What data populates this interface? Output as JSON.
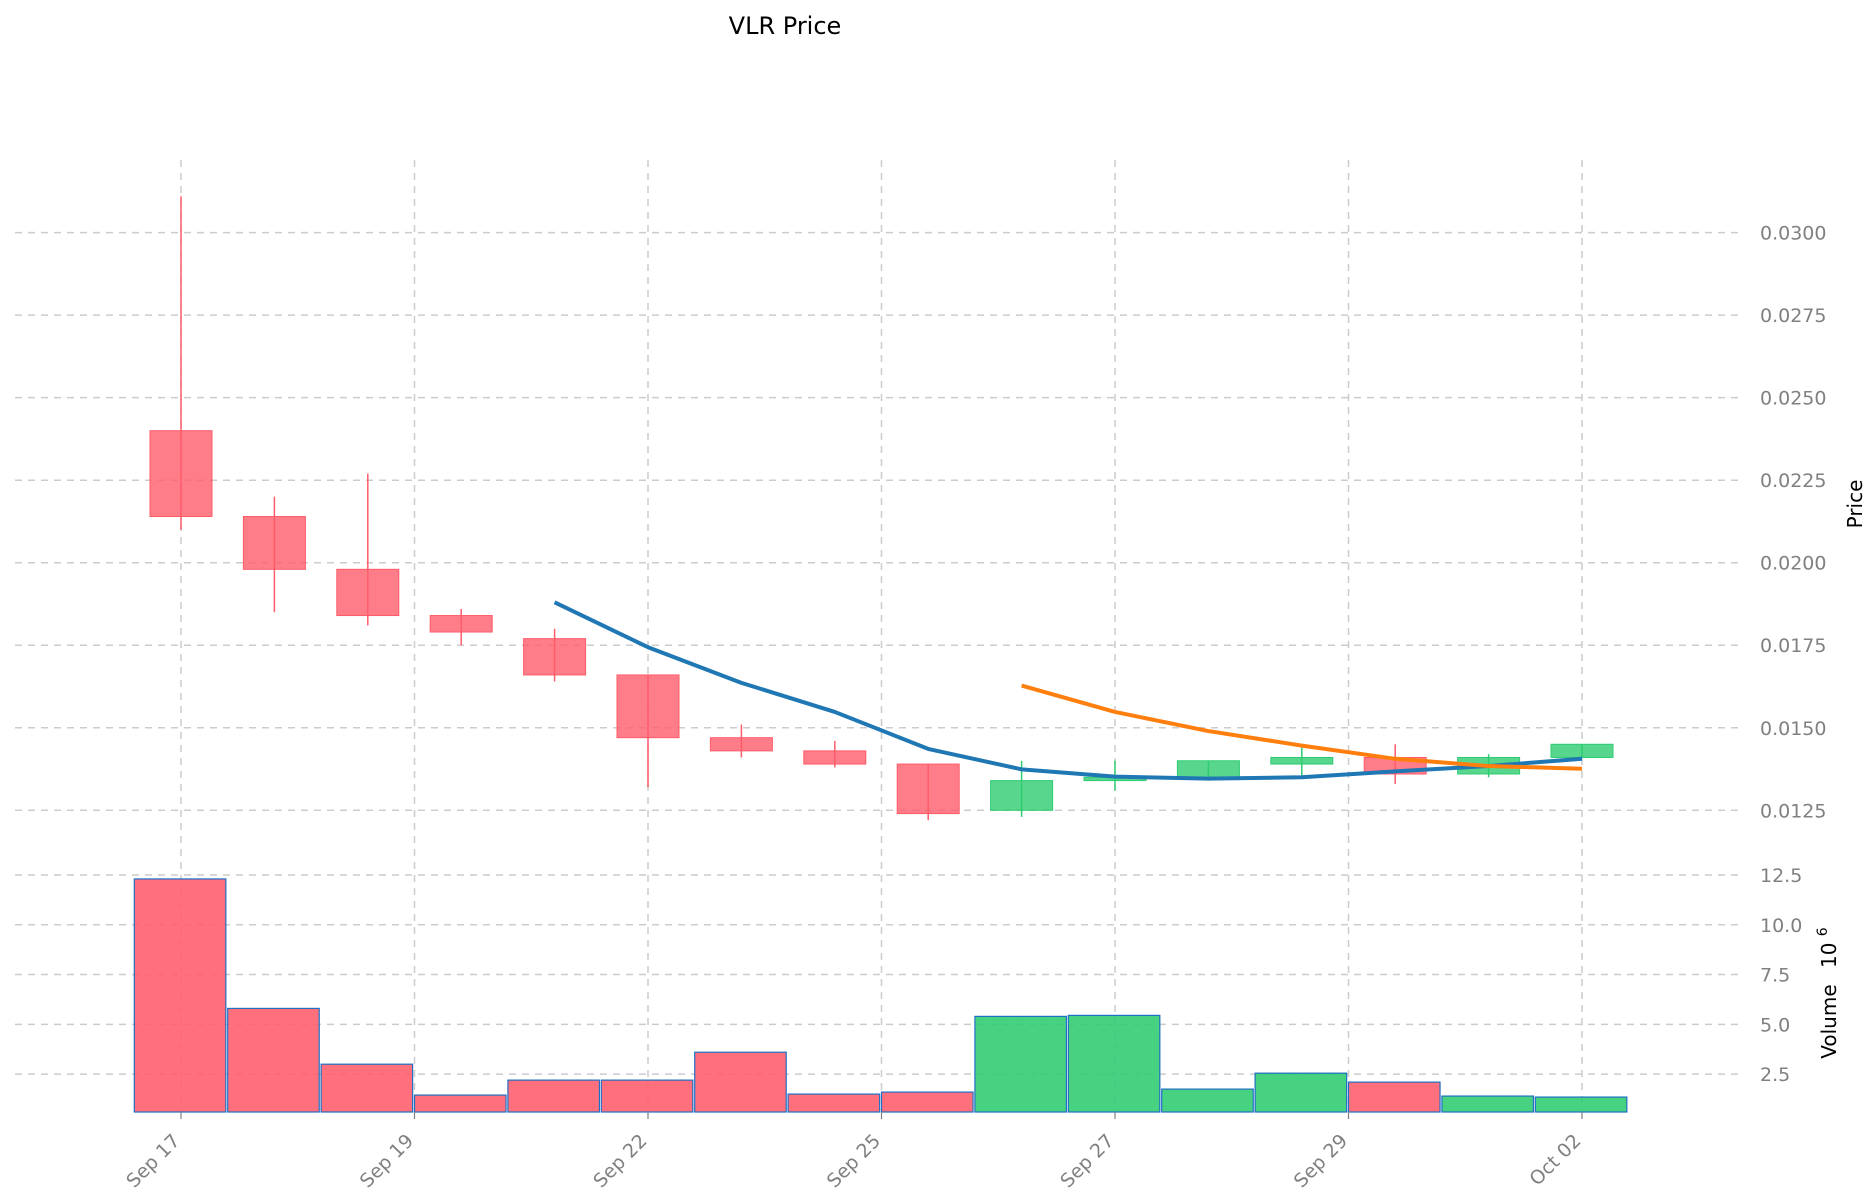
{
  "chart_data": {
    "title": "VLR Price",
    "price_panel": {
      "type": "candlestick",
      "ylabel": "Price",
      "ylim": [
        0.0116,
        0.0322
      ],
      "yticks": [
        0.0125,
        0.015,
        0.0175,
        0.02,
        0.0225,
        0.025,
        0.0275,
        0.03
      ],
      "ytick_labels": [
        "0.0125",
        "0.0150",
        "0.0175",
        "0.0200",
        "0.0225",
        "0.0250",
        "0.0275",
        "0.0300"
      ],
      "candles": [
        {
          "date": "Sep 17",
          "open": 0.024,
          "high": 0.0311,
          "low": 0.021,
          "close": 0.0214
        },
        {
          "date": "Sep 18",
          "open": 0.0214,
          "high": 0.022,
          "low": 0.0185,
          "close": 0.0198
        },
        {
          "date": "Sep 19",
          "open": 0.0198,
          "high": 0.0227,
          "low": 0.0181,
          "close": 0.0184
        },
        {
          "date": "Sep 20",
          "open": 0.0184,
          "high": 0.0186,
          "low": 0.0175,
          "close": 0.0179
        },
        {
          "date": "Sep 21",
          "open": 0.0177,
          "high": 0.018,
          "low": 0.0164,
          "close": 0.0166
        },
        {
          "date": "Sep 22",
          "open": 0.0166,
          "high": 0.0166,
          "low": 0.0132,
          "close": 0.0147
        },
        {
          "date": "Sep 23",
          "open": 0.0147,
          "high": 0.0151,
          "low": 0.0141,
          "close": 0.0143
        },
        {
          "date": "Sep 24",
          "open": 0.0143,
          "high": 0.0146,
          "low": 0.0138,
          "close": 0.0139
        },
        {
          "date": "Sep 25",
          "open": 0.0139,
          "high": 0.0139,
          "low": 0.0122,
          "close": 0.0124
        },
        {
          "date": "Sep 26",
          "open": 0.0125,
          "high": 0.014,
          "low": 0.0123,
          "close": 0.0134
        },
        {
          "date": "Sep 27",
          "open": 0.0134,
          "high": 0.014,
          "low": 0.0131,
          "close": 0.0135
        },
        {
          "date": "Sep 28",
          "open": 0.0135,
          "high": 0.014,
          "low": 0.0134,
          "close": 0.014
        },
        {
          "date": "Sep 29",
          "open": 0.0139,
          "high": 0.0145,
          "low": 0.0135,
          "close": 0.0141
        },
        {
          "date": "Sep 30",
          "open": 0.0141,
          "high": 0.0145,
          "low": 0.0133,
          "close": 0.0136
        },
        {
          "date": "Oct 01",
          "open": 0.0136,
          "high": 0.0142,
          "low": 0.0135,
          "close": 0.0141
        },
        {
          "date": "Oct 02",
          "open": 0.0141,
          "high": 0.0145,
          "low": 0.0141,
          "close": 0.0145
        }
      ],
      "moving_averages": [
        {
          "color": "#1f77b4",
          "start_index": 4,
          "values": [
            0.0188,
            0.01744,
            0.01636,
            0.01548,
            0.01436,
            0.01374,
            0.01352,
            0.01346,
            0.0135,
            0.01368,
            0.01384,
            0.01406
          ]
        },
        {
          "color": "#ff7f0e",
          "start_index": 9,
          "values": [
            0.01628,
            0.01548,
            0.0149,
            0.01446,
            0.01406,
            0.01384,
            0.01376
          ]
        }
      ]
    },
    "volume_panel": {
      "type": "bar",
      "ylabel": "Volume",
      "yscale_label": "10",
      "yscale_exponent": "6",
      "ylim": [
        0.6,
        13.0
      ],
      "yticks": [
        2.5,
        5.0,
        7.5,
        10.0,
        12.5
      ],
      "ytick_labels": [
        "2.5",
        "5.0",
        "7.5",
        "10.0",
        "12.5"
      ],
      "values": [
        12.3,
        5.8,
        3.0,
        1.45,
        2.2,
        2.2,
        3.6,
        1.5,
        1.6,
        5.4,
        5.45,
        1.75,
        2.55,
        2.1,
        1.4,
        1.35
      ]
    },
    "x_ticks": [
      {
        "label": "Sep 17",
        "index": 0
      },
      {
        "label": "Sep 19",
        "index": 2.5
      },
      {
        "label": "Sep 22",
        "index": 5
      },
      {
        "label": "Sep 25",
        "index": 7.5
      },
      {
        "label": "Sep 27",
        "index": 10
      },
      {
        "label": "Sep 29",
        "index": 12.5
      },
      {
        "label": "Oct 02",
        "index": 15
      }
    ],
    "colors": {
      "up": "#2ecc71",
      "down": "#ff5c6a",
      "volume_edge": "#1f6fc5",
      "grid": "#cccccc",
      "tick_text": "#808080"
    },
    "grid": true
  }
}
